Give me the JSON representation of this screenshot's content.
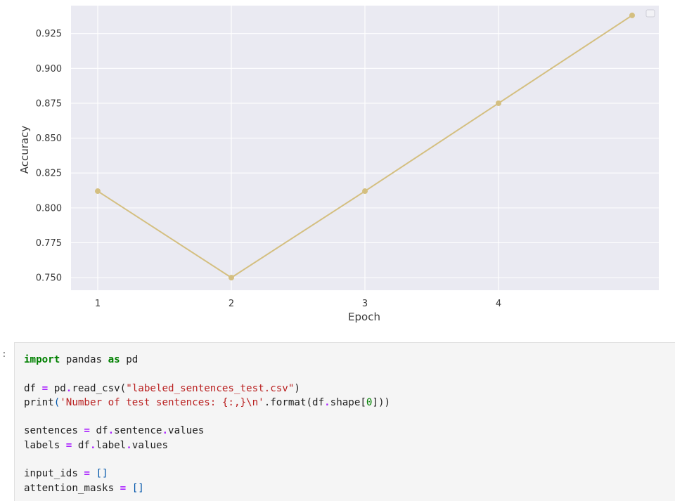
{
  "chart_data": {
    "type": "line",
    "title": "",
    "xlabel": "Epoch",
    "ylabel": "Accuracy",
    "x": [
      1,
      2,
      3,
      4,
      5
    ],
    "x_tick_labels": [
      "1",
      "2",
      "3",
      "4"
    ],
    "y_tick_labels": [
      "0.750",
      "0.775",
      "0.800",
      "0.825",
      "0.850",
      "0.875",
      "0.900",
      "0.925"
    ],
    "series": [
      {
        "values": [
          0.812,
          0.75,
          0.812,
          0.875,
          0.938
        ],
        "color": "#d4bf80"
      }
    ],
    "xlim": [
      0.8,
      5.2
    ],
    "ylim": [
      0.741,
      0.945
    ],
    "background": "#eaeaf2",
    "grid": true,
    "legend": "top-right (empty)"
  },
  "notebook": {
    "prompt": ":",
    "code_lines": [
      [
        {
          "t": "import",
          "c": "kw"
        },
        {
          "t": " pandas "
        },
        {
          "t": "as",
          "c": "kw"
        },
        {
          "t": " pd"
        }
      ],
      [],
      [
        {
          "t": "df "
        },
        {
          "t": "=",
          "c": "op"
        },
        {
          "t": " pd"
        },
        {
          "t": ".",
          "c": "op"
        },
        {
          "t": "read_csv("
        },
        {
          "t": "\"labeled_sentences_test.csv\"",
          "c": "str"
        },
        {
          "t": ")"
        }
      ],
      [
        {
          "t": "print"
        },
        {
          "t": "(",
          "c": "paren"
        },
        {
          "t": "'Number of test sentences: {:,}\\n'",
          "c": "str"
        },
        {
          "t": "."
        },
        {
          "t": "format(df"
        },
        {
          "t": ".",
          "c": "op"
        },
        {
          "t": "shape["
        },
        {
          "t": "0",
          "c": "num"
        },
        {
          "t": "]))"
        }
      ],
      [],
      [
        {
          "t": "sentences "
        },
        {
          "t": "=",
          "c": "op"
        },
        {
          "t": " df"
        },
        {
          "t": ".",
          "c": "op"
        },
        {
          "t": "sentence"
        },
        {
          "t": ".",
          "c": "op"
        },
        {
          "t": "values"
        }
      ],
      [
        {
          "t": "labels "
        },
        {
          "t": "=",
          "c": "op"
        },
        {
          "t": " df"
        },
        {
          "t": ".",
          "c": "op"
        },
        {
          "t": "label"
        },
        {
          "t": ".",
          "c": "op"
        },
        {
          "t": "values"
        }
      ],
      [],
      [
        {
          "t": "input_ids "
        },
        {
          "t": "=",
          "c": "op"
        },
        {
          "t": " "
        },
        {
          "t": "[]",
          "c": "paren"
        }
      ],
      [
        {
          "t": "attention_masks "
        },
        {
          "t": "=",
          "c": "op"
        },
        {
          "t": " "
        },
        {
          "t": "[]",
          "c": "paren"
        }
      ]
    ]
  }
}
